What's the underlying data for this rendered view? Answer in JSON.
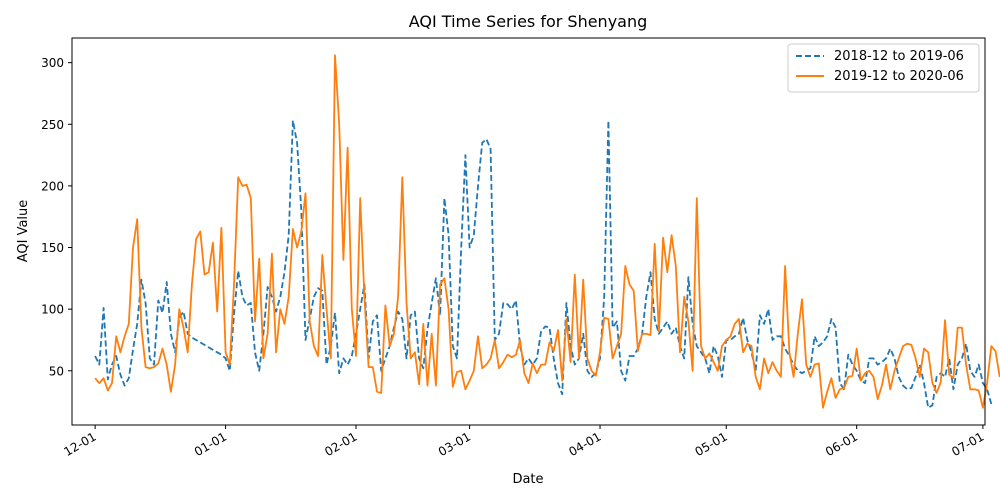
{
  "chart_data": {
    "type": "line",
    "title": "AQI Time Series for Shenyang",
    "xlabel": "Date",
    "ylabel": "AQI Value",
    "x_axis": "day index from 1 Dec (0 = 12-01, daily values through 30 Jun)",
    "xlim": [
      -5.5,
      211.5
    ],
    "ylim": [
      6,
      320
    ],
    "xticks": [
      {
        "label": "12-01",
        "x": 0
      },
      {
        "label": "01-01",
        "x": 31
      },
      {
        "label": "02-01",
        "x": 62
      },
      {
        "label": "03-01",
        "x": 89
      },
      {
        "label": "04-01",
        "x": 120
      },
      {
        "label": "05-01",
        "x": 150
      },
      {
        "label": "06-01",
        "x": 181
      },
      {
        "label": "07-01",
        "x": 211
      }
    ],
    "yticks": [
      50,
      100,
      150,
      200,
      250,
      300
    ],
    "legend": "upper right",
    "grid": false,
    "series": [
      {
        "name": "2018-12 to 2019-06",
        "color": "#1f77b4",
        "dash": "dashed",
        "values": [
          62,
          55,
          101,
          43,
          55,
          62,
          47,
          38,
          44,
          67,
          88,
          124,
          105,
          60,
          55,
          107,
          97,
          122,
          80,
          65,
          93,
          98,
          80,
          77,
          75,
          73,
          71,
          69,
          67,
          65,
          63,
          60,
          50,
          96,
          131,
          110,
          103,
          105,
          65,
          50,
          80,
          118,
          110,
          98,
          110,
          130,
          160,
          253,
          235,
          180,
          75,
          92,
          110,
          117,
          115,
          55,
          70,
          97,
          48,
          60,
          55,
          62,
          80,
          100,
          120,
          60,
          90,
          95,
          50,
          60,
          70,
          85,
          98,
          92,
          60,
          95,
          98,
          60,
          52,
          84,
          105,
          125,
          95,
          190,
          160,
          70,
          60,
          150,
          225,
          150,
          160,
          200,
          235,
          238,
          230,
          75,
          80,
          105,
          104,
          100,
          107,
          70,
          55,
          60,
          55,
          60,
          82,
          86,
          85,
          60,
          40,
          31,
          105,
          70,
          55,
          60,
          80,
          50,
          45,
          48,
          60,
          110,
          253,
          85,
          90,
          50,
          42,
          62,
          62,
          68,
          80,
          110,
          130,
          92,
          80,
          85,
          90,
          80,
          85,
          70,
          60,
          126,
          88,
          70,
          65,
          60,
          48,
          70,
          62,
          45,
          75,
          75,
          78,
          80,
          93,
          75,
          65,
          50,
          95,
          88,
          100,
          75,
          78,
          78,
          68,
          62,
          55,
          50,
          48,
          50,
          52,
          78,
          70,
          73,
          78,
          92,
          85,
          40,
          35,
          63,
          55,
          50,
          42,
          40,
          60,
          60,
          55,
          57,
          60,
          68,
          60,
          45,
          38,
          35,
          36,
          45,
          55,
          40,
          20,
          22,
          45,
          48,
          45,
          60,
          35,
          55,
          60,
          72,
          50,
          45,
          55,
          40,
          35,
          23
        ]
      },
      {
        "name": "2019-12 to 2020-06",
        "color": "#ff7f0e",
        "dash": "solid",
        "values": [
          44,
          40,
          44,
          34,
          40,
          78,
          65,
          78,
          88,
          150,
          173,
          85,
          53,
          52,
          53,
          56,
          68,
          55,
          33,
          55,
          100,
          85,
          65,
          120,
          157,
          163,
          128,
          130,
          154,
          98,
          166,
          65,
          55,
          120,
          207,
          200,
          201,
          190,
          90,
          141,
          60,
          80,
          145,
          65,
          100,
          88,
          110,
          165,
          150,
          163,
          194,
          90,
          70,
          62,
          144,
          100,
          60,
          306,
          250,
          140,
          231,
          100,
          62,
          190,
          110,
          53,
          53,
          33,
          32,
          103,
          70,
          80,
          110,
          207,
          105,
          60,
          65,
          39,
          88,
          38,
          80,
          38,
          120,
          125,
          100,
          37,
          49,
          50,
          35,
          42,
          50,
          78,
          52,
          55,
          60,
          75,
          52,
          57,
          63,
          61,
          63,
          75,
          48,
          40,
          56,
          48,
          55,
          55,
          73,
          66,
          83,
          42,
          92,
          57,
          128,
          60,
          124,
          60,
          50,
          46,
          65,
          93,
          92,
          60,
          70,
          80,
          135,
          120,
          115,
          66,
          80,
          80,
          79,
          153,
          82,
          158,
          130,
          160,
          135,
          65,
          110,
          90,
          50,
          190,
          70,
          60,
          64,
          57,
          50,
          70,
          75,
          78,
          88,
          92,
          65,
          72,
          70,
          45,
          35,
          60,
          48,
          57,
          50,
          45,
          135,
          65,
          45,
          80,
          108,
          55,
          45,
          55,
          56,
          20,
          33,
          44,
          28,
          35,
          36,
          45,
          46,
          68,
          42,
          48,
          50,
          45,
          27,
          38,
          55,
          35,
          50,
          60,
          70,
          72,
          71,
          60,
          45,
          68,
          65,
          40,
          32,
          41,
          91,
          47,
          44,
          85,
          85,
          55,
          35,
          35,
          34,
          20,
          40,
          70,
          66,
          45
        ]
      }
    ]
  }
}
